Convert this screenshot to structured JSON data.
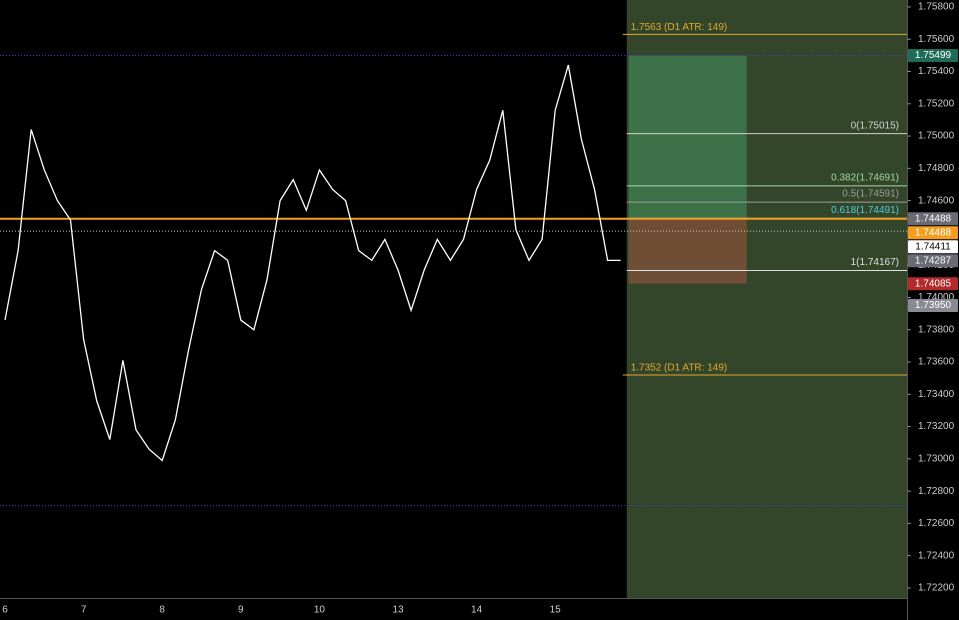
{
  "chart_data": {
    "type": "line",
    "categories": [
      "6",
      null,
      null,
      null,
      null,
      null,
      "7",
      null,
      null,
      null,
      null,
      null,
      "8",
      null,
      null,
      null,
      null,
      null,
      "9",
      null,
      null,
      null,
      null,
      null,
      "10",
      null,
      null,
      null,
      null,
      null,
      "13",
      null,
      null,
      null,
      null,
      null,
      "14",
      null,
      null,
      null,
      null,
      null,
      "15",
      null,
      null,
      null,
      null,
      null
    ],
    "values": [
      1.7386,
      1.7429,
      1.7504,
      1.7479,
      1.746,
      1.7448,
      1.7374,
      1.7336,
      1.7312,
      1.7361,
      1.7318,
      1.7306,
      1.7299,
      1.7324,
      1.7367,
      1.7405,
      1.7429,
      1.7423,
      1.7386,
      1.738,
      1.7411,
      1.746,
      1.7473,
      1.7454,
      1.7479,
      1.7467,
      1.746,
      1.7429,
      1.7423,
      1.7436,
      1.7417,
      1.7392,
      1.7417,
      1.7436,
      1.7423,
      1.7436,
      1.7467,
      1.7485,
      1.7516,
      1.7442,
      1.7423,
      1.7436,
      1.7516,
      1.7544,
      1.7498,
      1.7467,
      1.7423,
      1.7423
    ],
    "color": "#ffffff",
    "ylim": [
      1.72138,
      1.75843
    ],
    "yticks": [
      {
        "value": 1.722,
        "label": "1.72200"
      },
      {
        "value": 1.724,
        "label": "1.72400"
      },
      {
        "value": 1.726,
        "label": "1.72600"
      },
      {
        "value": 1.728,
        "label": "1.72800"
      },
      {
        "value": 1.73,
        "label": "1.73000"
      },
      {
        "value": 1.732,
        "label": "1.73200"
      },
      {
        "value": 1.734,
        "label": "1.73400"
      },
      {
        "value": 1.736,
        "label": "1.73600"
      },
      {
        "value": 1.738,
        "label": "1.73800"
      },
      {
        "value": 1.74,
        "label": "1.74000"
      },
      {
        "value": 1.742,
        "label": "1.74200"
      },
      {
        "value": 1.744,
        "label": "1.74400"
      },
      {
        "value": 1.746,
        "label": "1.74600"
      },
      {
        "value": 1.748,
        "label": "1.74800"
      },
      {
        "value": 1.75,
        "label": "1.75000"
      },
      {
        "value": 1.752,
        "label": "1.75200"
      },
      {
        "value": 1.754,
        "label": "1.75400"
      },
      {
        "value": 1.756,
        "label": "1.75600"
      },
      {
        "value": 1.758,
        "label": "1.75800"
      }
    ],
    "atr_levels": [
      {
        "value": 1.7563,
        "label": "1.7563 (D1 ATR: 149)"
      },
      {
        "value": 1.7352,
        "label": "1.7352 (D1 ATR: 149)"
      }
    ],
    "fib_levels": [
      {
        "value": 1.75015,
        "label": "0(1.75015)",
        "color": "#d0d0d0"
      },
      {
        "value": 1.74691,
        "label": "0.382(1.74691)",
        "color": "#a5d6a7"
      },
      {
        "value": 1.74591,
        "label": "0.5(1.74591)",
        "color": "#9e9e9e"
      },
      {
        "value": 1.74491,
        "label": "0.618(1.74491)",
        "color": "#4dd0e1"
      },
      {
        "value": 1.74167,
        "label": "1(1.74167)",
        "color": "#e0e0e0"
      }
    ],
    "range_lines": [
      1.75499,
      1.7271
    ],
    "position": {
      "target": 1.75499,
      "entry": 1.74488,
      "stop": 1.74085
    },
    "current_price": 1.74411,
    "price_tags": [
      {
        "value": 1.75499,
        "label": "1.75499",
        "color": "#1e6b5a"
      },
      {
        "value": 1.74488,
        "label": "1.74488",
        "color": "#6b6b75"
      },
      {
        "value": 1.74488,
        "label": "1.74488",
        "color": "#f59d1e"
      },
      {
        "value": 1.74411,
        "label": "1.74411",
        "color": "#ffffff"
      },
      {
        "value": 1.74287,
        "label": "1.74287",
        "color": "#6b6b75"
      },
      {
        "value": 1.74085,
        "label": "1.74085",
        "color": "#b22a2a"
      },
      {
        "value": 1.7395,
        "label": "1.73950",
        "color": "#8a8a94"
      }
    ]
  }
}
